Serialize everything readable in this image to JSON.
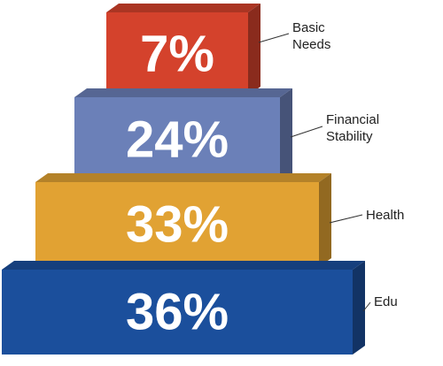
{
  "chart_data": {
    "type": "pyramid",
    "categories": [
      "Basic Needs",
      "Financial Stability",
      "Health",
      "Edu"
    ],
    "values": [
      7,
      24,
      33,
      36
    ],
    "value_labels": [
      "7%",
      "24%",
      "33%",
      "36%"
    ],
    "colors": [
      "#d4422c",
      "#6b80b8",
      "#e1a233",
      "#1b4f9c"
    ]
  }
}
